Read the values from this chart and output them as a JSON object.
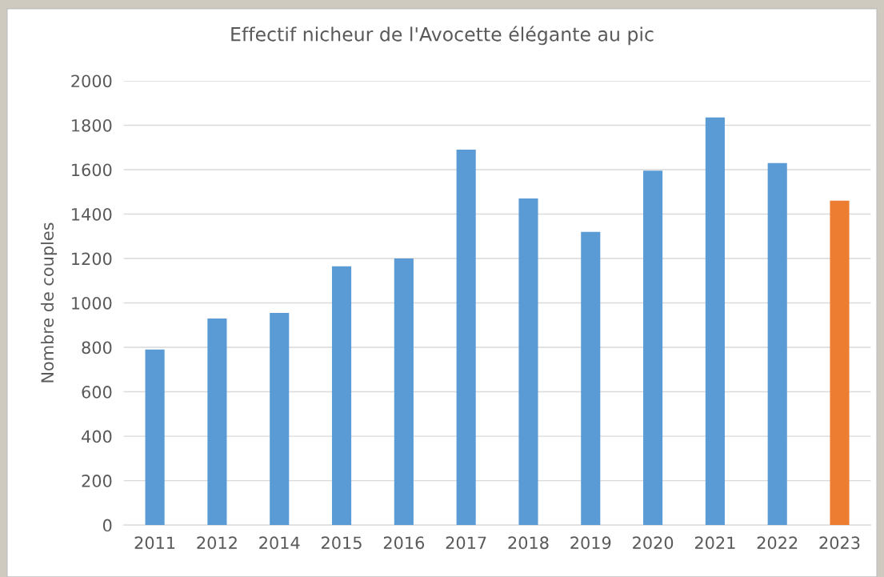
{
  "chart_data": {
    "type": "bar",
    "title": "Effectif nicheur de l'Avocette élégante au pic",
    "ylabel": "Nombre de couples",
    "categories": [
      "2011",
      "2012",
      "2014",
      "2015",
      "2016",
      "2017",
      "2018",
      "2019",
      "2020",
      "2021",
      "2022",
      "2023"
    ],
    "values": [
      790,
      930,
      955,
      1165,
      1200,
      1690,
      1470,
      1320,
      1595,
      1835,
      1630,
      1460
    ],
    "colors": [
      "#5b9bd5",
      "#5b9bd5",
      "#5b9bd5",
      "#5b9bd5",
      "#5b9bd5",
      "#5b9bd5",
      "#5b9bd5",
      "#5b9bd5",
      "#5b9bd5",
      "#5b9bd5",
      "#5b9bd5",
      "#ed7d31"
    ],
    "ylim": [
      0,
      2000
    ],
    "yticks": [
      0,
      200,
      400,
      600,
      800,
      1000,
      1200,
      1400,
      1600,
      1800,
      2000
    ],
    "grid": "y",
    "legend": false
  }
}
